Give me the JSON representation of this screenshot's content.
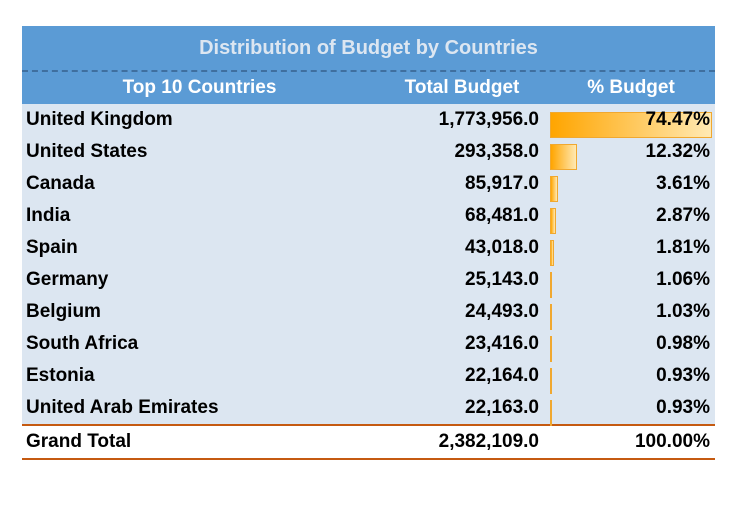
{
  "chart_data": {
    "type": "table",
    "title": "Distribution of Budget by Countries",
    "columns": [
      "Top 10 Countries",
      "Total Budget",
      "% Budget"
    ],
    "rows": [
      {
        "country": "United Kingdom",
        "total": "1,773,956.0",
        "pct_label": "74.47%",
        "pct": 74.47
      },
      {
        "country": "United States",
        "total": "293,358.0",
        "pct_label": "12.32%",
        "pct": 12.32
      },
      {
        "country": "Canada",
        "total": "85,917.0",
        "pct_label": "3.61%",
        "pct": 3.61
      },
      {
        "country": "India",
        "total": "68,481.0",
        "pct_label": "2.87%",
        "pct": 2.87
      },
      {
        "country": "Spain",
        "total": "43,018.0",
        "pct_label": "1.81%",
        "pct": 1.81
      },
      {
        "country": "Germany",
        "total": "25,143.0",
        "pct_label": "1.06%",
        "pct": 1.06
      },
      {
        "country": "Belgium",
        "total": "24,493.0",
        "pct_label": "1.03%",
        "pct": 1.03
      },
      {
        "country": "South Africa",
        "total": "23,416.0",
        "pct_label": "0.98%",
        "pct": 0.98
      },
      {
        "country": "Estonia",
        "total": "22,164.0",
        "pct_label": "0.93%",
        "pct": 0.93
      },
      {
        "country": "United Arab Emirates",
        "total": "22,163.0",
        "pct_label": "0.93%",
        "pct": 0.93
      }
    ],
    "grand_total": {
      "label": "Grand Total",
      "total": "2,382,109.0",
      "pct_label": "100.00%"
    },
    "colors": {
      "header": "#5b9bd5",
      "body": "#dce6f1",
      "bar": "#ffa500",
      "total_border": "#c55a11"
    }
  }
}
